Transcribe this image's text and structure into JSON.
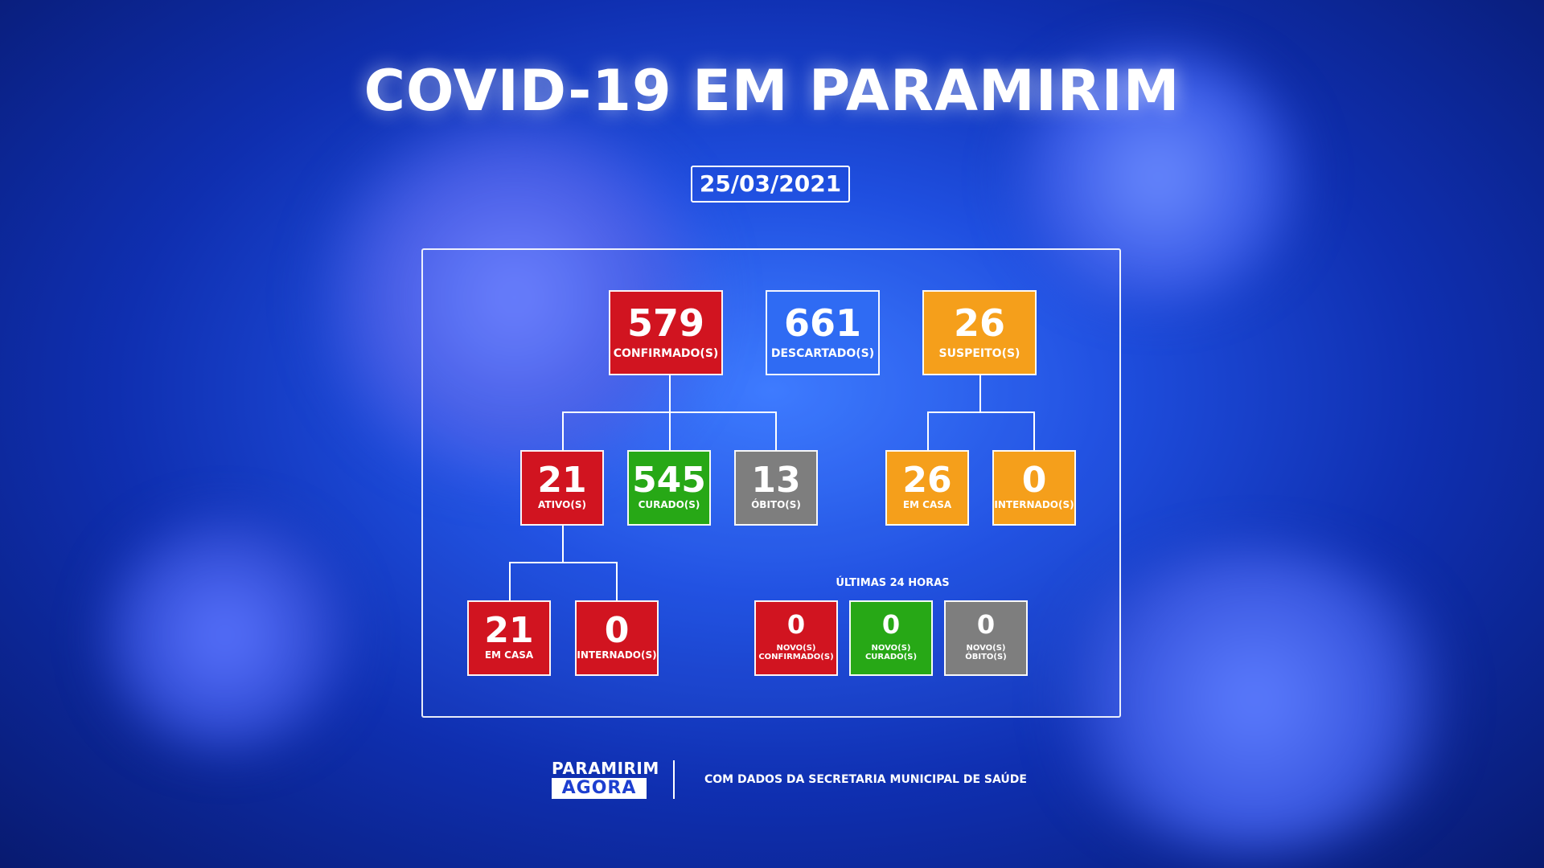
{
  "title": "COVID-19 EM PARAMIRIM",
  "date": "25/03/2021",
  "confirmed": {
    "value": "579",
    "label": "CONFIRMADO(S)"
  },
  "discarded": {
    "value": "661",
    "label": "DESCARTADO(S)"
  },
  "suspected": {
    "value": "26",
    "label": "SUSPEITO(S)"
  },
  "active": {
    "value": "21",
    "label": "ATIVO(S)"
  },
  "cured": {
    "value": "545",
    "label": "CURADO(S)"
  },
  "deaths": {
    "value": "13",
    "label": "ÓBITO(S)"
  },
  "suspected_home": {
    "value": "26",
    "label": "EM CASA"
  },
  "suspected_hospital": {
    "value": "0",
    "label": "INTERNADO(S)"
  },
  "active_home": {
    "value": "21",
    "label": "EM CASA"
  },
  "active_hospital": {
    "value": "0",
    "label": "INTERNADO(S)"
  },
  "last24": {
    "heading": "ÚLTIMAS 24 HORAS",
    "new_confirmed": {
      "value": "0",
      "label_1": "NOVO(S)",
      "label_2": "CONFIRMADO(S)"
    },
    "new_cured": {
      "value": "0",
      "label_1": "NOVO(S)",
      "label_2": "CURADO(S)"
    },
    "new_deaths": {
      "value": "0",
      "label_1": "NOVO(S)",
      "label_2": "ÓBITO(S)"
    }
  },
  "footer": {
    "logo_top": "PARAMIRIM",
    "logo_bottom": "AGORA",
    "source": "COM DADOS DA SECRETARIA MUNICIPAL DE SAÚDE"
  },
  "colors": {
    "red": "#d11420",
    "blue": "#2f6bf3",
    "orange": "#f59f1b",
    "green": "#27a816",
    "gray": "#7e7e7e"
  }
}
